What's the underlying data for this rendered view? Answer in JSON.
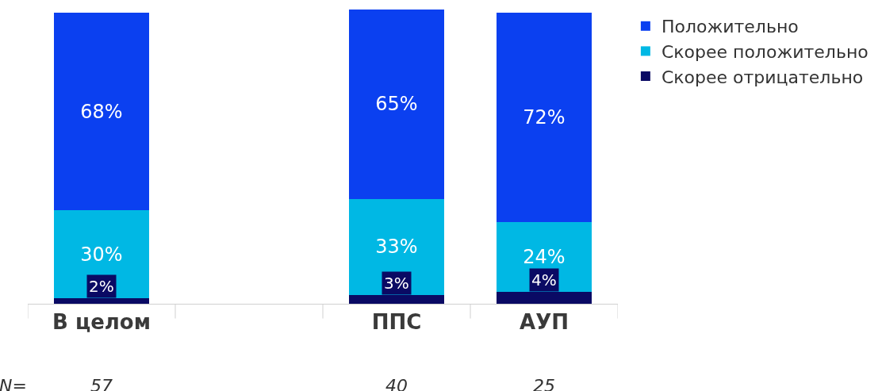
{
  "chart_data": {
    "type": "bar",
    "stacked": true,
    "categories": [
      "В целом",
      null,
      "ППС",
      "АУП"
    ],
    "series": [
      {
        "name": "Скорее отрицательно",
        "color": "#0a0a64",
        "values": [
          2,
          null,
          3,
          4
        ],
        "value_labels": [
          "2%",
          null,
          "3%",
          "4%"
        ]
      },
      {
        "name": "Скорее положительно",
        "color": "#00b8e4",
        "values": [
          30,
          null,
          33,
          24
        ],
        "value_labels": [
          "30%",
          null,
          "33%",
          "24%"
        ]
      },
      {
        "name": "Положительно",
        "color": "#0b40f0",
        "values": [
          68,
          null,
          65,
          72
        ],
        "value_labels": [
          "68%",
          null,
          "65%",
          "72%"
        ]
      }
    ],
    "legend": "right",
    "annotations": [
      "N=",
      "57",
      "40",
      "25"
    ]
  }
}
